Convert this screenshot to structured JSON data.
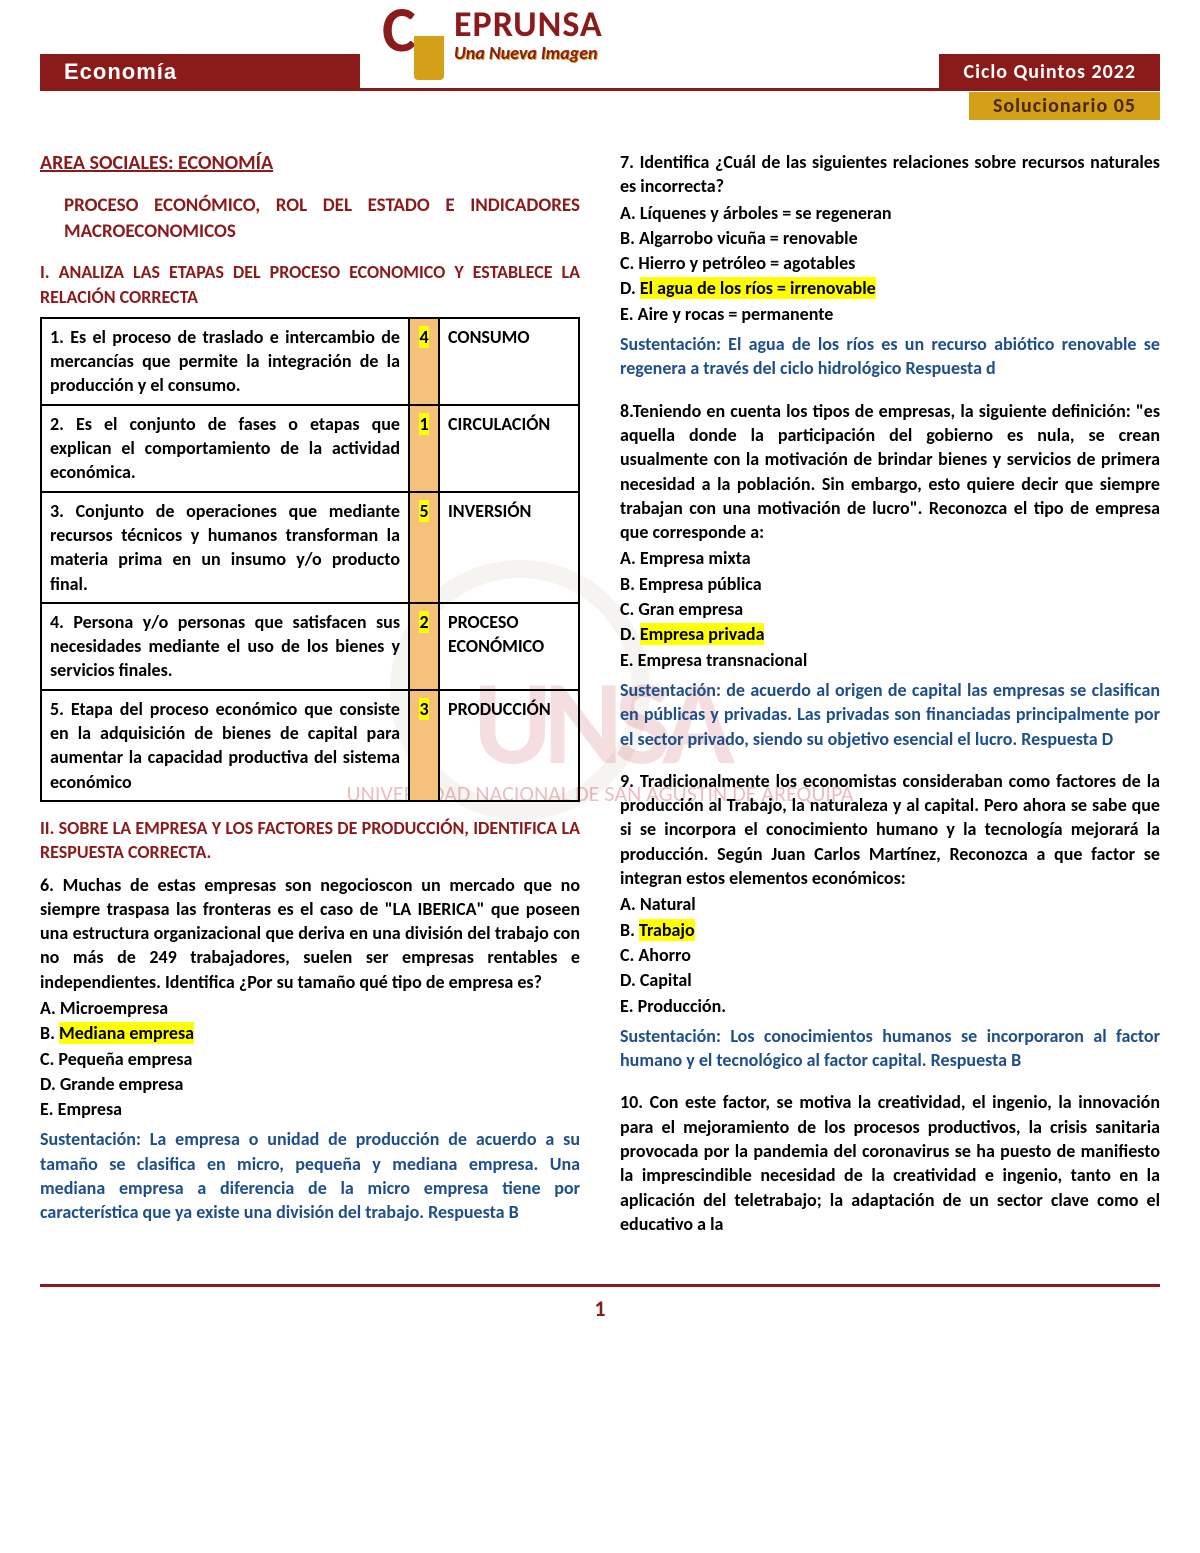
{
  "header": {
    "subject": "Economía",
    "brand_top": "EPRUNSA",
    "brand_tag": "Una Nueva Imagen",
    "cycle": "Ciclo Quintos 2022",
    "doc": "Solucionario 05"
  },
  "area": "AREA SOCIALES: ECONOMÍA",
  "subtitle": "PROCESO ECONÓMICO, ROL DEL ESTADO E INDICADORES MACROECONOMICOS",
  "sec1": "I.      ANALIZA LAS ETAPAS DEL PROCESO ECONOMICO Y ESTABLECE LA RELACIÓN CORRECTA",
  "table": [
    {
      "def": "1. Es el proceso de traslado e intercambio de mercancías que permite la integración de la producción y el consumo.",
      "n": "4",
      "lab": "CONSUMO"
    },
    {
      "def": "2. Es el conjunto de fases o etapas que explican el comportamiento de la actividad económica.",
      "n": "1",
      "lab": "CIRCULACIÓN"
    },
    {
      "def": "3. Conjunto de operaciones que mediante recursos técnicos y humanos transforman la materia prima en un insumo y/o producto final.",
      "n": "5",
      "lab": "INVERSIÓN"
    },
    {
      "def": "4. Persona y/o personas que satisfacen sus necesidades mediante el uso de los bienes y servicios finales.",
      "n": "2",
      "lab": "PROCESO ECONÓMICO"
    },
    {
      "def": "5. Etapa del proceso económico que consiste en la adquisición de bienes de capital para aumentar la capacidad productiva del sistema económico",
      "n": "3",
      "lab": "PRODUCCIÓN"
    }
  ],
  "sec2": "II.      SOBRE LA EMPRESA Y LOS FACTORES DE PRODUCCIÓN, IDENTIFICA LA RESPUESTA CORRECTA.",
  "q6": {
    "text": "6. Muchas de estas empresas son negocioscon un mercado que no siempre traspasa las fronteras es el caso de \"LA IBERICA\" que poseen una estructura organizacional que deriva en una división del trabajo con no más de 249 trabajadores, suelen ser empresas rentables e independientes. Identifica ¿Por su tamaño qué tipo de empresa es?",
    "a": "A. Microempresa",
    "b": "B. ",
    "bh": "Mediana empresa",
    "c": "C. Pequeña empresa",
    "d": "D. Grande empresa",
    "e": "E. Empresa",
    "sust": "Sustentación: La empresa o unidad de producción de acuerdo a su tamaño se clasifica en micro, pequeña y mediana empresa. Una mediana empresa a diferencia de la micro empresa tiene por característica que ya existe una división del trabajo. Respuesta B"
  },
  "q7": {
    "text": "7. Identifica ¿Cuál de las siguientes relaciones sobre recursos naturales es incorrecta?",
    "a": "A. Líquenes y árboles = se regeneran",
    "b": "B. Algarrobo vicuña = renovable",
    "c": "C. Hierro y petróleo = agotables",
    "d": "D. ",
    "dh": "El agua de los ríos = irrenovable",
    "e": "E. Aire y rocas = permanente",
    "sust": "Sustentación: El agua de los ríos es un recurso abiótico renovable se regenera a través del ciclo hidrológico Respuesta d"
  },
  "q8": {
    "text": "8.Teniendo en cuenta los tipos de empresas, la siguiente definición: \"es aquella donde la participación del gobierno es nula, se crean usualmente con la motivación de brindar bienes y servicios de primera necesidad a la población. Sin embargo, esto quiere decir que siempre trabajan con una motivación de lucro\". Reconozca el tipo de empresa que corresponde a:",
    "a": "A. Empresa mixta",
    "b": "B. Empresa pública",
    "c": "C. Gran empresa",
    "d": "D. ",
    "dh": "Empresa privada",
    "e": "E. Empresa transnacional",
    "sust": "Sustentación: de acuerdo al origen de capital las empresas se clasifican en públicas y privadas. Las privadas son financiadas principalmente por el sector privado, siendo su objetivo esencial el lucro. Respuesta D"
  },
  "q9": {
    "text": "9. Tradicionalmente los economistas consideraban como factores de la producción al Trabajo, la naturaleza y al capital. Pero ahora se sabe que si se incorpora el conocimiento humano y la tecnología mejorará la producción. Según Juan Carlos Martínez, Reconozca a que factor se integran estos elementos económicos:",
    "a": "A. Natural",
    "b": "B.  ",
    "bh": "Trabajo",
    "c": "C.  Ahorro",
    "d": "D. Capital",
    "e": "E.  Producción.",
    "sust": "Sustentación: Los conocimientos humanos se incorporaron al factor humano y el tecnológico al factor capital. Respuesta B"
  },
  "q10": {
    "text": "10. Con este factor, se motiva la creatividad, el ingenio, la innovación para el mejoramiento de los procesos productivos, la crisis sanitaria provocada   por   la pandemia del coronavirus se ha   puesto    de manifiesto la imprescindible necesidad de la creatividad e ingenio, tanto   en la aplicación del teletrabajo; la adaptación de un sector clave como el educativo a la"
  },
  "pagenum": "1",
  "wm": {
    "big": "UNSA",
    "sub": "UNIVERSIDAD NACIONAL DE SAN AGUSTÍN DE AREQUIPA"
  }
}
